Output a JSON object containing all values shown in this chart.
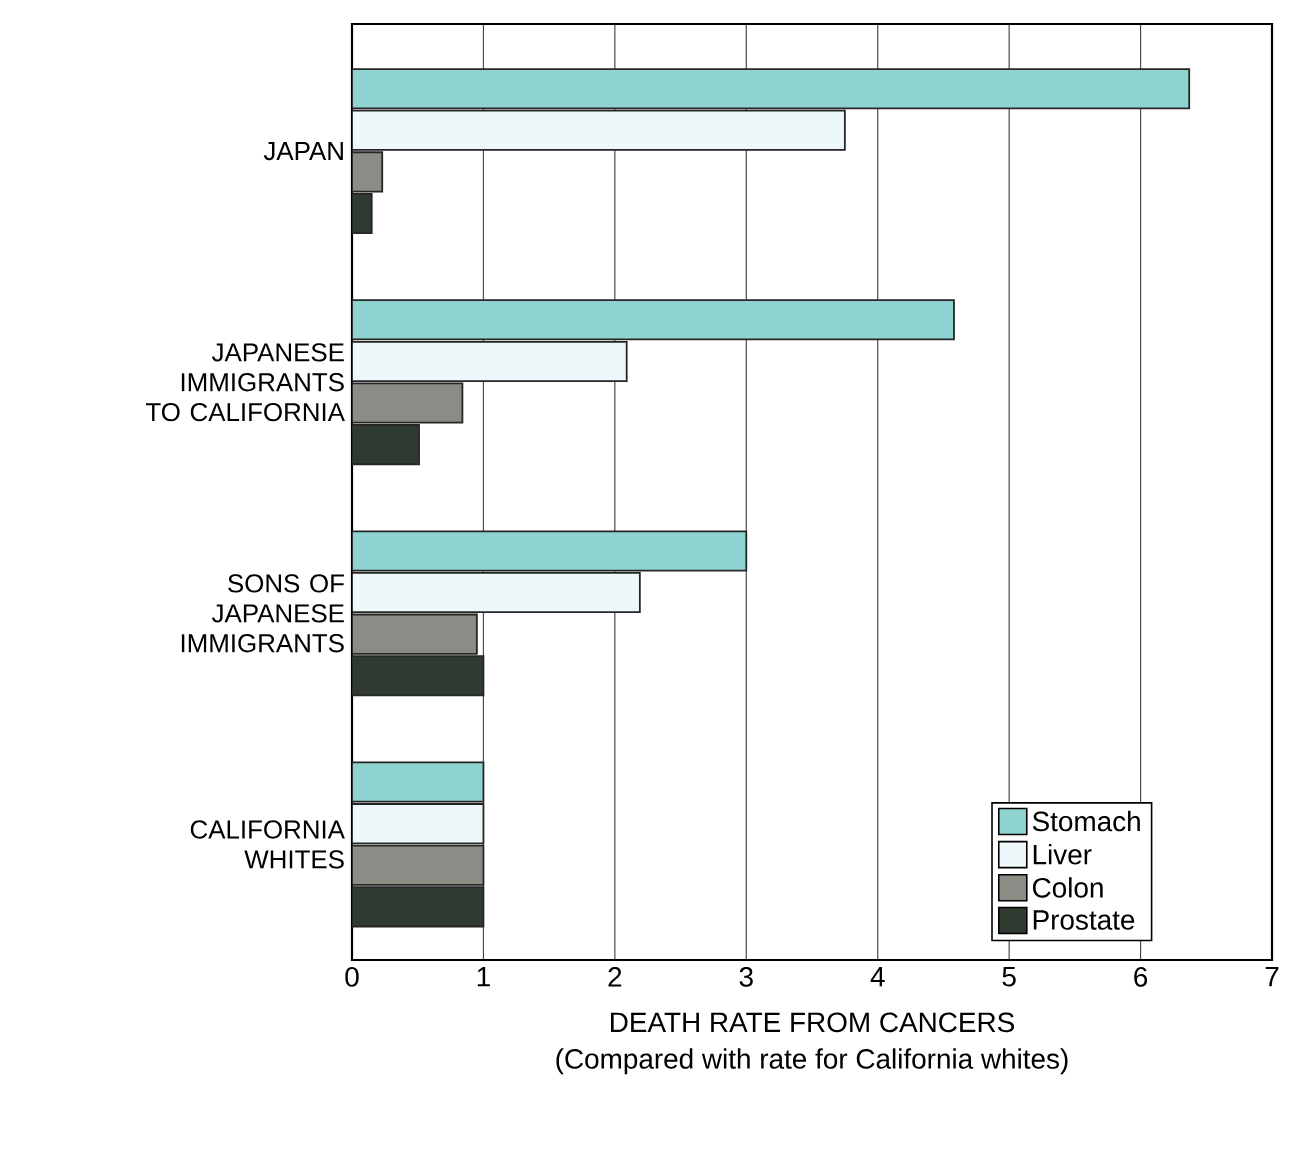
{
  "chart_data": {
    "type": "bar",
    "orientation": "horizontal",
    "xlabel": "DEATH RATE FROM CANCERS",
    "annotations": [
      "(Compared with rate for California whites)"
    ],
    "categories": [
      "JAPAN",
      "JAPANESE IMMIGRANTS TO CALIFORNIA",
      "SONS OF JAPANESE IMMIGRANTS",
      "CALIFORNIA WHITES"
    ],
    "series": [
      {
        "name": "Stomach",
        "color": "#8fd3d0",
        "values": [
          6.37,
          4.58,
          3.0,
          1.0
        ]
      },
      {
        "name": "Liver",
        "color": "#eef8fa",
        "values": [
          3.75,
          2.09,
          2.19,
          1.0
        ]
      },
      {
        "name": "Colon",
        "color": "#8a8d86",
        "values": [
          0.23,
          0.84,
          0.95,
          1.0
        ]
      },
      {
        "name": "Prostate",
        "color": "#2f3a30",
        "values": [
          0.15,
          0.51,
          1.0,
          1.0
        ]
      }
    ],
    "xlim": [
      0,
      7
    ],
    "xticks": [
      0,
      1,
      2,
      3,
      4,
      5,
      6,
      7
    ],
    "grid": "x",
    "legend": "bottom right"
  }
}
